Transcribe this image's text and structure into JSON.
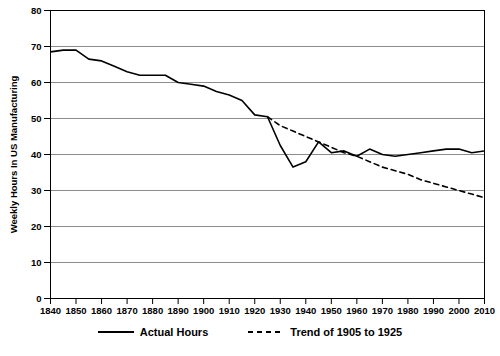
{
  "chart_data": {
    "type": "line",
    "y_label": "Weekly Hours In US Manufacturing",
    "x": [
      1840,
      1845,
      1850,
      1855,
      1860,
      1865,
      1870,
      1875,
      1880,
      1885,
      1890,
      1895,
      1900,
      1905,
      1910,
      1915,
      1920,
      1925,
      1930,
      1935,
      1940,
      1945,
      1950,
      1955,
      1960,
      1965,
      1970,
      1975,
      1980,
      1985,
      1990,
      1995,
      2000,
      2005,
      2010
    ],
    "series": [
      {
        "name": "Actual Hours",
        "color": "#000000",
        "line_style": "solid",
        "values": [
          68.5,
          69,
          69,
          66.5,
          66,
          64.5,
          63,
          62,
          62,
          62,
          60,
          59.5,
          59,
          57.5,
          56.5,
          55,
          51,
          50.5,
          42.5,
          36.5,
          38,
          43.5,
          40.5,
          41,
          39.5,
          41.5,
          40,
          39.5,
          40,
          40.5,
          41,
          41.5,
          41.5,
          40.5,
          41
        ]
      },
      {
        "name": "Trend of 1905 to 1925",
        "color": "#000000",
        "line_style": "dashed",
        "values": [
          null,
          null,
          null,
          null,
          null,
          null,
          null,
          null,
          null,
          null,
          null,
          null,
          null,
          null,
          null,
          null,
          null,
          50.5,
          48,
          46.5,
          45,
          43.5,
          42,
          40.5,
          39.5,
          38,
          36.5,
          35.5,
          34.5,
          33,
          32,
          31,
          30,
          29,
          28
        ]
      }
    ],
    "xlim": [
      1840,
      2010
    ],
    "xticks": [
      1840,
      1850,
      1860,
      1870,
      1880,
      1890,
      1900,
      1910,
      1920,
      1930,
      1940,
      1950,
      1960,
      1970,
      1980,
      1990,
      2000,
      2010
    ],
    "ylim": [
      0,
      80
    ],
    "yticks": [
      0,
      10,
      20,
      30,
      40,
      50,
      60,
      70,
      80
    ],
    "grid": true,
    "legend": "bottom"
  }
}
